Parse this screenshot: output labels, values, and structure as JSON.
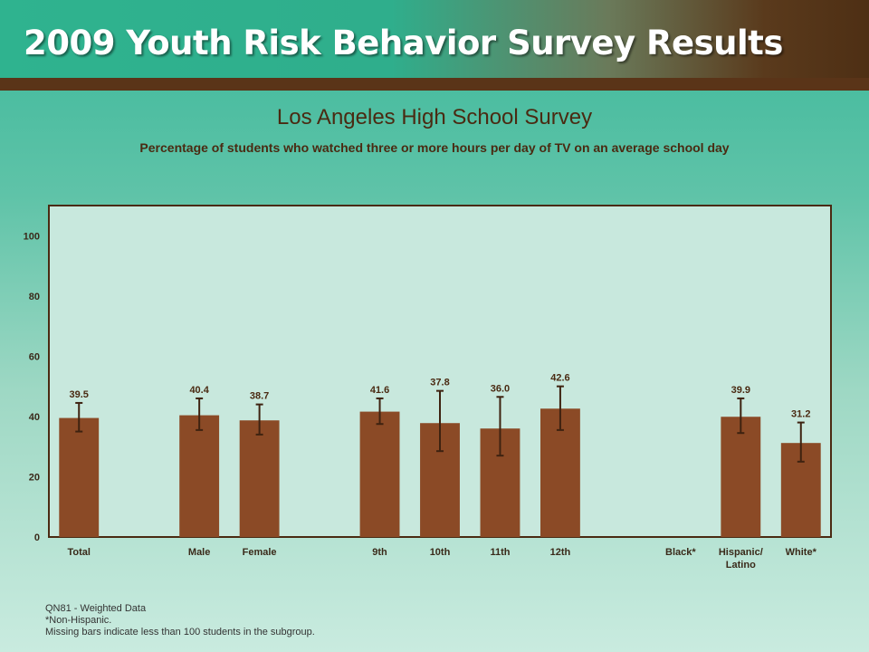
{
  "header": {
    "title": "2009 Youth Risk Behavior Survey Results"
  },
  "colors": {
    "bar": "#8b4a26",
    "error_bar": "#3e2210",
    "text": "#4a2a12",
    "plot_bg": "#c8e8dd",
    "plot_border": "#4a2a12"
  },
  "chart_data": {
    "type": "bar",
    "title": "Los Angeles High School Survey",
    "subtitle": "Percentage of students who watched three or more hours per day of TV on an average school day",
    "xlabel": "",
    "ylabel": "",
    "ylim": [
      0,
      110
    ],
    "yticks": [
      0,
      20,
      40,
      60,
      80,
      100
    ],
    "grid": false,
    "categories": [
      "Total",
      "",
      "Male",
      "Female",
      "",
      "9th",
      "10th",
      "11th",
      "12th",
      "",
      "Black*",
      "Hispanic/ Latino",
      "White*"
    ],
    "values": [
      39.5,
      null,
      40.4,
      38.7,
      null,
      41.6,
      37.8,
      36.0,
      42.6,
      null,
      null,
      39.9,
      31.2
    ],
    "value_labels": [
      "39.5",
      "",
      "40.4",
      "38.7",
      "",
      "41.6",
      "37.8",
      "36.0",
      "42.6",
      "",
      "",
      "39.9",
      "31.2"
    ],
    "ci_low": [
      35.0,
      null,
      35.5,
      34.0,
      null,
      37.5,
      28.5,
      27.0,
      35.5,
      null,
      null,
      34.5,
      25.0
    ],
    "ci_high": [
      44.5,
      null,
      46.0,
      44.0,
      null,
      46.0,
      48.5,
      46.5,
      50.0,
      null,
      null,
      46.0,
      38.0
    ]
  },
  "footnotes": [
    "QN81 - Weighted Data",
    "*Non-Hispanic.",
    "Missing bars indicate less than 100 students in the subgroup."
  ]
}
